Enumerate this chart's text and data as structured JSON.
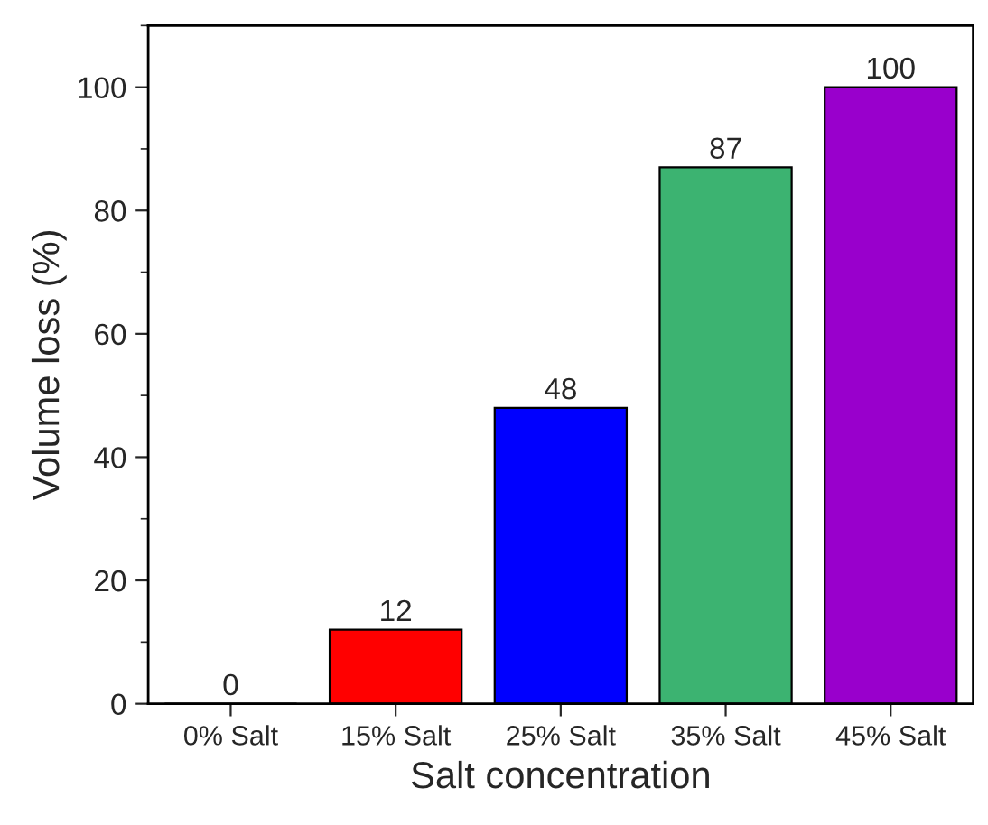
{
  "chart_data": {
    "type": "bar",
    "xlabel": "Salt concentration",
    "ylabel": "Volume loss (%)",
    "categories": [
      "0% Salt",
      "15% Salt",
      "25% Salt",
      "35% Salt",
      "45% Salt"
    ],
    "values": [
      0,
      12,
      48,
      87,
      100
    ],
    "colors": [
      "#000000",
      "#ff0000",
      "#0000ff",
      "#3cb371",
      "#9900cc"
    ],
    "ylim": [
      0,
      110
    ],
    "yticks": [
      0,
      20,
      40,
      60,
      80,
      100
    ],
    "data_labels": true,
    "grid": false
  }
}
